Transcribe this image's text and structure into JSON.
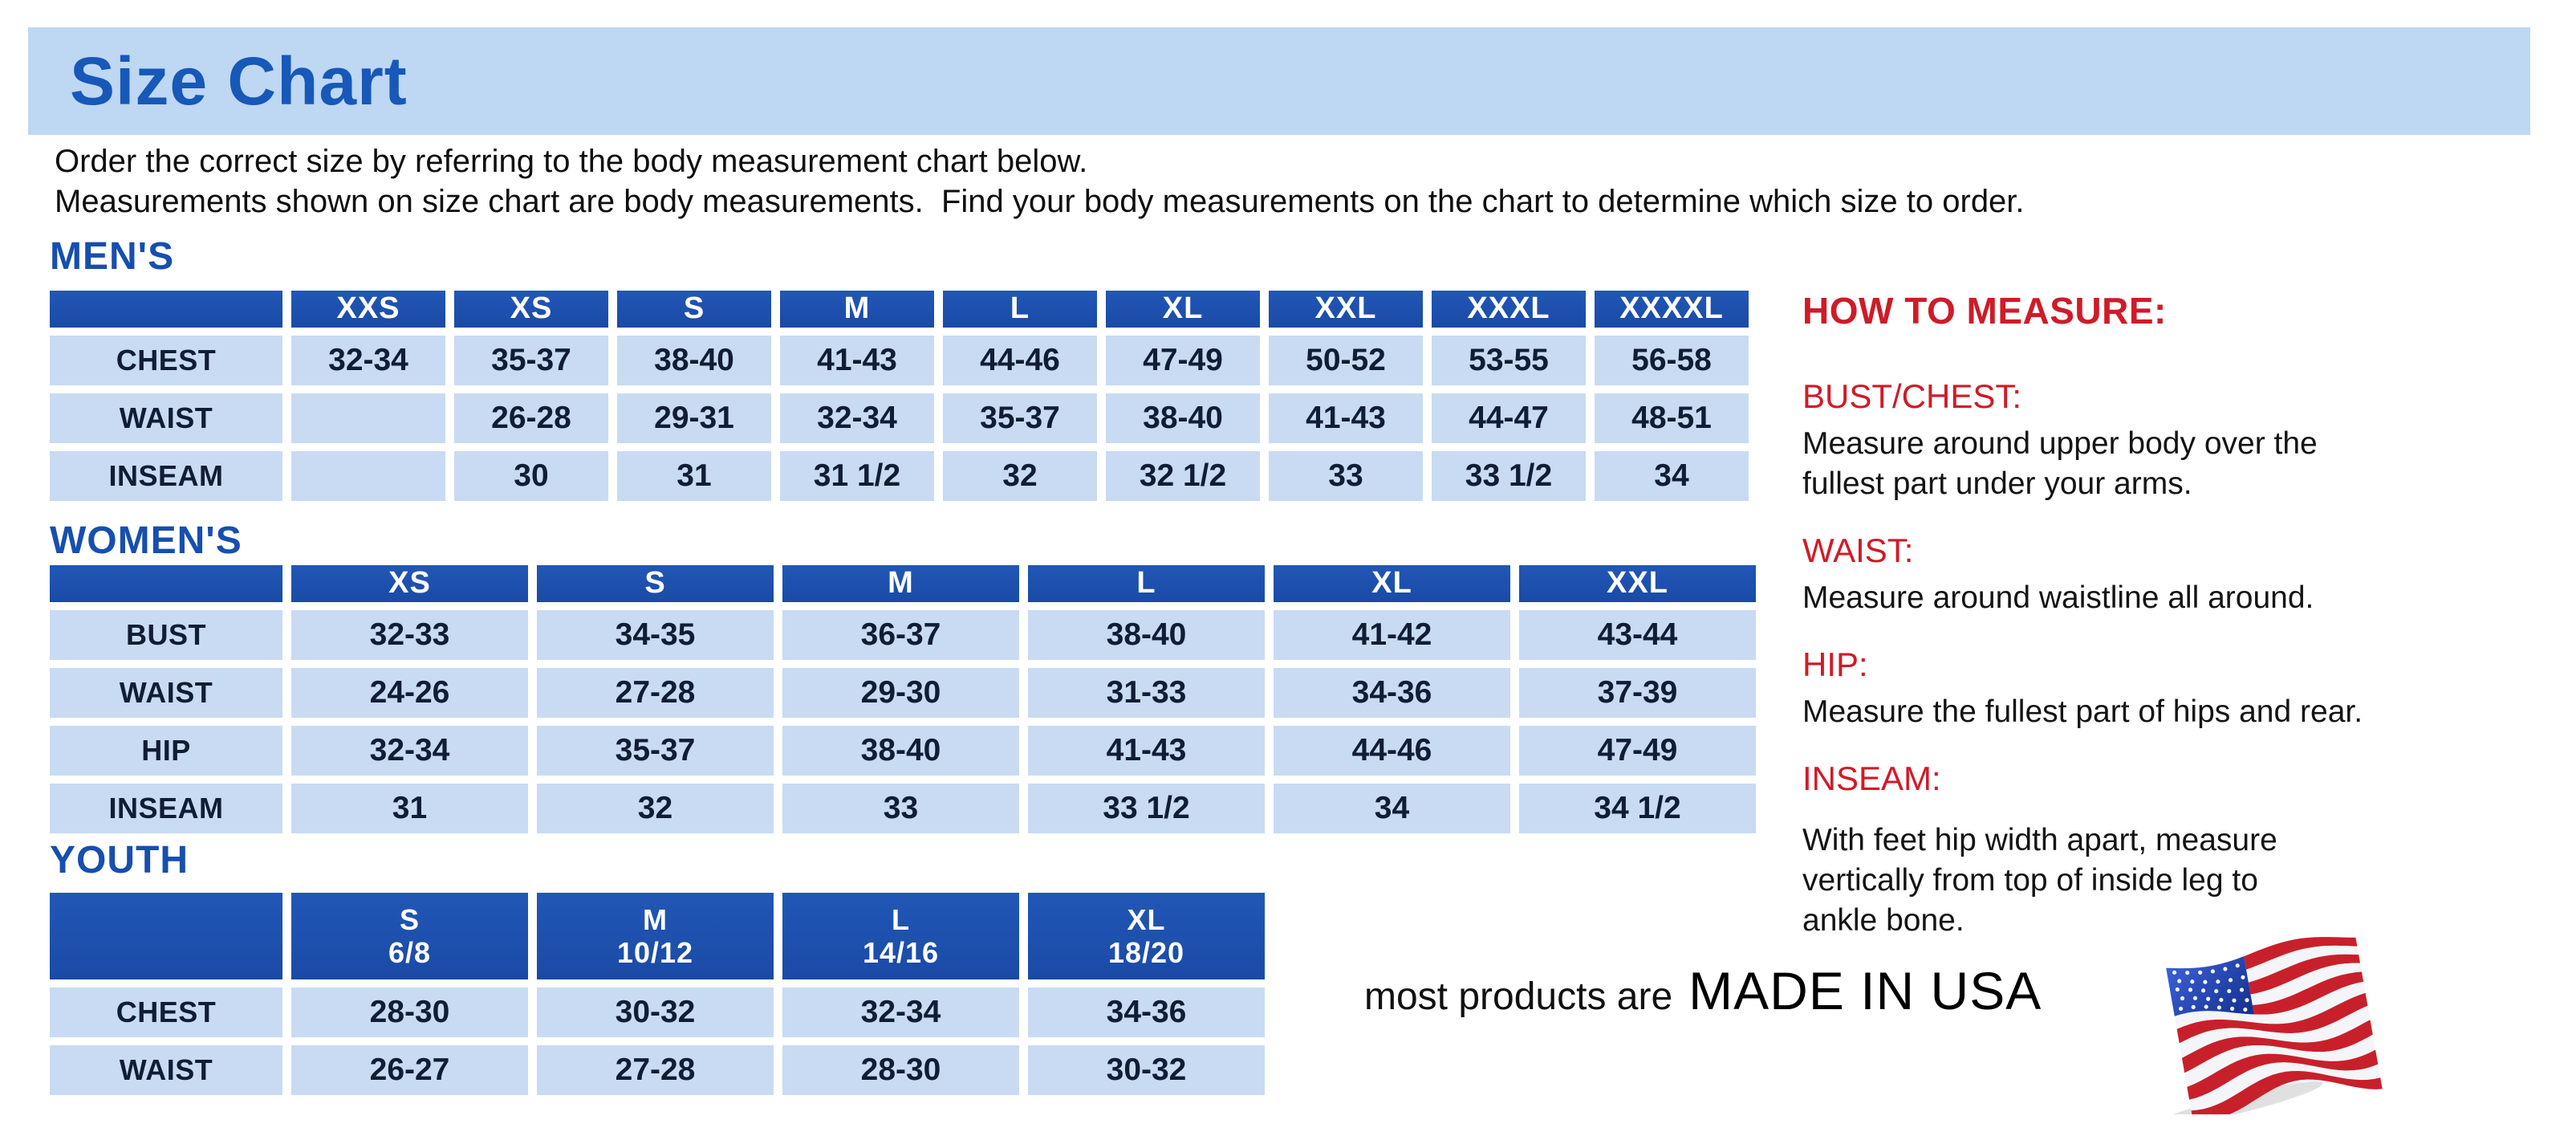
{
  "title": "Size Chart",
  "intro": {
    "line1": "Order the correct size by referring to the body measurement chart below.",
    "line2": "Measurements shown on size chart are body measurements.  Find your body measurements on the chart to determine which size to order."
  },
  "sections": {
    "mens": {
      "label": "MEN'S",
      "columns": [
        "XXS",
        "XS",
        "S",
        "M",
        "L",
        "XL",
        "XXL",
        "XXXL",
        "XXXXL"
      ],
      "rows": [
        {
          "label": "CHEST",
          "values": [
            "32-34",
            "35-37",
            "38-40",
            "41-43",
            "44-46",
            "47-49",
            "50-52",
            "53-55",
            "56-58"
          ]
        },
        {
          "label": "WAIST",
          "values": [
            "",
            "26-28",
            "29-31",
            "32-34",
            "35-37",
            "38-40",
            "41-43",
            "44-47",
            "48-51"
          ]
        },
        {
          "label": "INSEAM",
          "values": [
            "",
            "30",
            "31",
            "31 1/2",
            "32",
            "32 1/2",
            "33",
            "33 1/2",
            "34"
          ]
        }
      ]
    },
    "womens": {
      "label": "WOMEN'S",
      "columns": [
        "XS",
        "S",
        "M",
        "L",
        "XL",
        "XXL"
      ],
      "rows": [
        {
          "label": "BUST",
          "values": [
            "32-33",
            "34-35",
            "36-37",
            "38-40",
            "41-42",
            "43-44"
          ]
        },
        {
          "label": "WAIST",
          "values": [
            "24-26",
            "27-28",
            "29-30",
            "31-33",
            "34-36",
            "37-39"
          ]
        },
        {
          "label": "HIP",
          "values": [
            "32-34",
            "35-37",
            "38-40",
            "41-43",
            "44-46",
            "47-49"
          ]
        },
        {
          "label": "INSEAM",
          "values": [
            "31",
            "32",
            "33",
            "33 1/2",
            "34",
            "34 1/2"
          ]
        }
      ]
    },
    "youth": {
      "label": "YOUTH",
      "columns": [
        {
          "size": "S",
          "range": "6/8"
        },
        {
          "size": "M",
          "range": "10/12"
        },
        {
          "size": "L",
          "range": "14/16"
        },
        {
          "size": "XL",
          "range": "18/20"
        }
      ],
      "rows": [
        {
          "label": "CHEST",
          "values": [
            "28-30",
            "30-32",
            "32-34",
            "34-36"
          ]
        },
        {
          "label": "WAIST",
          "values": [
            "26-27",
            "27-28",
            "28-30",
            "30-32"
          ]
        }
      ]
    }
  },
  "how_to_measure": {
    "heading": "HOW TO MEASURE:",
    "items": [
      {
        "label": "BUST/CHEST:",
        "text": "Measure around upper body over the\nfullest part under your arms."
      },
      {
        "label": "WAIST:",
        "text": "Measure around waistline all around."
      },
      {
        "label": "HIP:",
        "text": "Measure the fullest part of hips and rear."
      },
      {
        "label": "INSEAM:",
        "text": "With feet hip width apart, measure\nvertically from top of inside leg to\nankle bone."
      }
    ]
  },
  "footer": {
    "prefix": "most products are",
    "made_in": "MADE IN USA",
    "flag_icon": "us-flag-icon"
  },
  "colors": {
    "banner_bg": "#bed7f3",
    "heading_blue": "#1758b8",
    "table_header_blue": "#1d4fae",
    "cell_bg": "#c8dbf2",
    "accent_red": "#cf1b28",
    "flag_red": "#c8202b",
    "flag_blue": "#1d3c9e"
  }
}
